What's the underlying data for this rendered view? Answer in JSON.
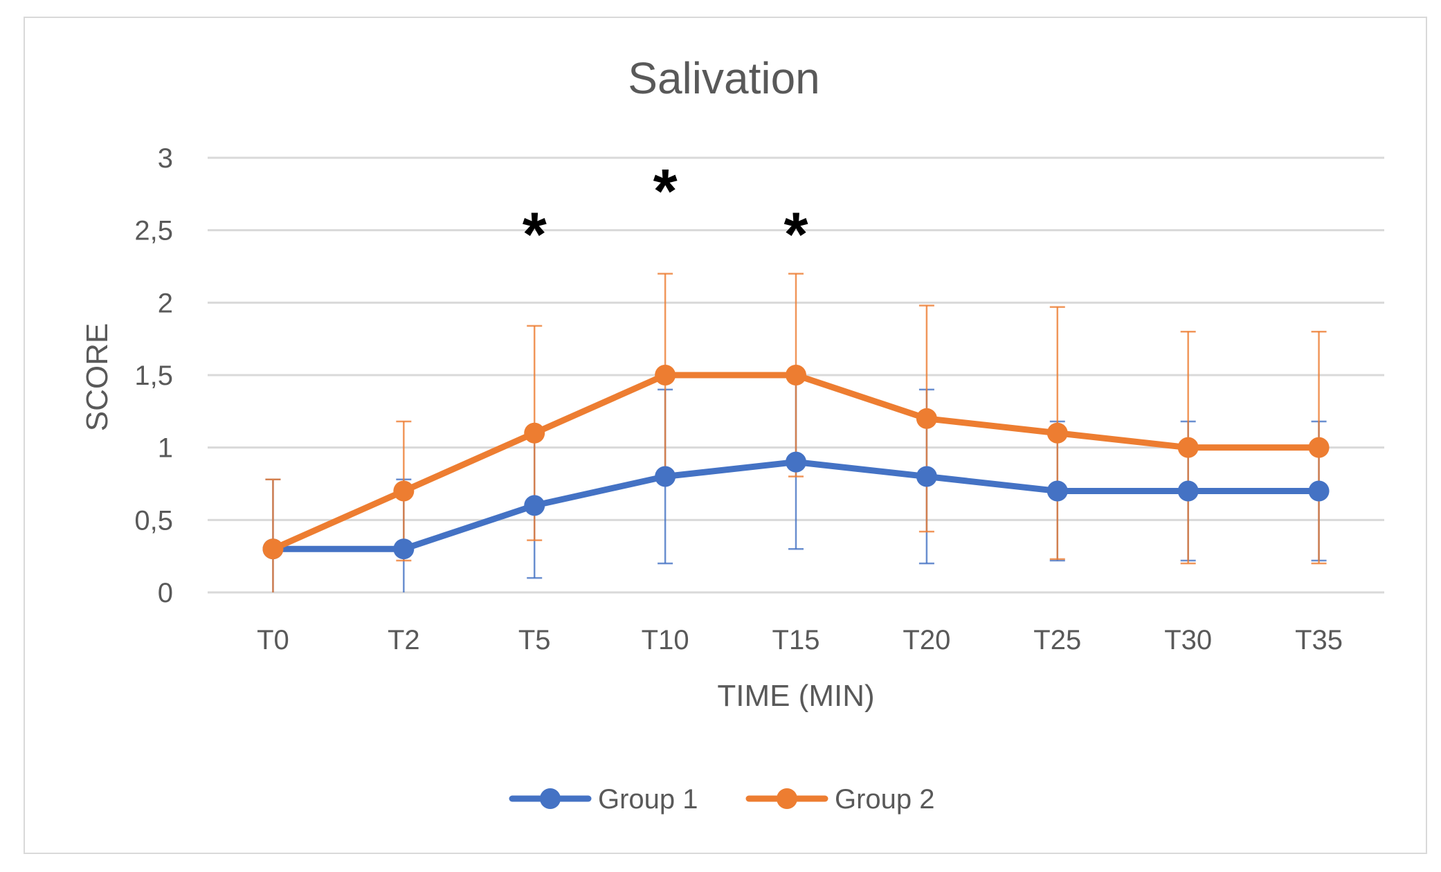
{
  "chart_data": {
    "type": "line",
    "title": "Salivation",
    "xlabel": "TIME (MIN)",
    "ylabel": "SCORE",
    "categories": [
      "T0",
      "T2",
      "T5",
      "T10",
      "T15",
      "T20",
      "T25",
      "T30",
      "T35"
    ],
    "ylim": [
      0,
      3
    ],
    "yticks": [
      0,
      0.5,
      1,
      1.5,
      2,
      2.5,
      3
    ],
    "ytick_labels": [
      "0",
      "0,5",
      "1",
      "1,5",
      "2",
      "2,5",
      "3"
    ],
    "grid": true,
    "legend": "bottom",
    "series": [
      {
        "name": "Group 1",
        "color": "#4472C4",
        "values": [
          0.3,
          0.3,
          0.6,
          0.8,
          0.9,
          0.8,
          0.7,
          0.7,
          0.7
        ],
        "error": [
          0.48,
          0.48,
          0.5,
          0.6,
          0.6,
          0.6,
          0.48,
          0.48,
          0.48
        ]
      },
      {
        "name": "Group 2",
        "color": "#ED7D31",
        "values": [
          0.3,
          0.7,
          1.1,
          1.5,
          1.5,
          1.2,
          1.1,
          1.0,
          1.0
        ],
        "error": [
          0.48,
          0.48,
          0.74,
          0.7,
          0.7,
          0.78,
          0.87,
          0.8,
          0.8
        ]
      }
    ],
    "annotations": [
      {
        "category": "T5",
        "text": "*",
        "y": 2.6
      },
      {
        "category": "T10",
        "text": "*",
        "y": 2.9
      },
      {
        "category": "T15",
        "text": "*",
        "y": 2.6
      }
    ]
  }
}
